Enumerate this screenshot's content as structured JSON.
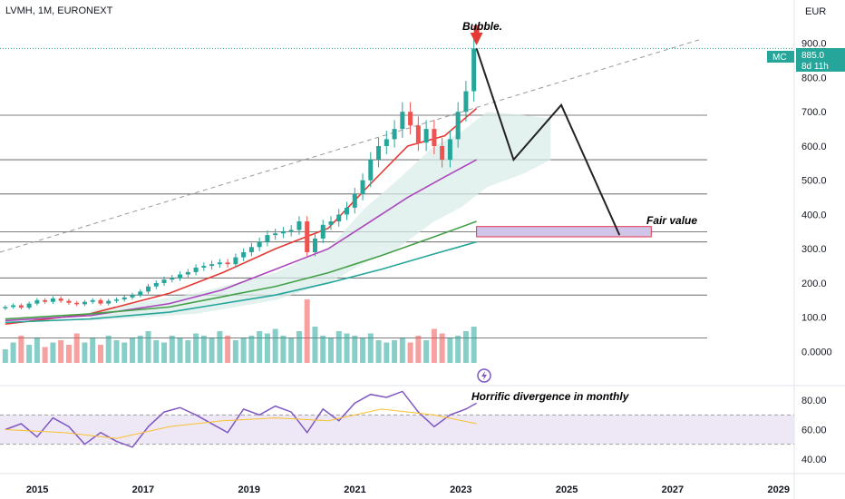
{
  "header": {
    "symbol": "LVMH, 1M, EURONEXT",
    "currency": "EUR"
  },
  "price_badge": {
    "ticker": "MC",
    "price": "885.0",
    "countdown": "8d 11h"
  },
  "annotations": {
    "bubble": "Bubble.",
    "fair_value": "Fair value",
    "divergence": "Horrific divergence in monthly"
  },
  "colors": {
    "up": "#26a69a",
    "down": "#ef5350",
    "ema_red": "#e53935",
    "ema_purple": "#ab47bc",
    "ema_green": "#43a047",
    "ema_teal": "#26a69a",
    "cloud": "#d7ebe8",
    "rsi": "#7e57c2",
    "rsi_band": "#ede7f6",
    "fair_value_box": "#d1c4e9",
    "fair_value_border": "#e53950"
  },
  "chart_data": [
    {
      "type": "line",
      "panel": "price",
      "y_ticks": [
        "900.0",
        "800.0",
        "700.0",
        "600.0",
        "500.0",
        "400.0",
        "300.0",
        "200.0",
        "100.0",
        "0.0000"
      ],
      "y_tick_values": [
        900,
        800,
        700,
        600,
        500,
        400,
        300,
        200,
        100,
        0
      ],
      "ylim": [
        -20,
        1000
      ],
      "x_ticks": [
        "2015",
        "2017",
        "2019",
        "2021",
        "2023",
        "2025",
        "2027",
        "2029"
      ],
      "x_tick_values": [
        2015,
        2017,
        2019,
        2021,
        2023,
        2025,
        2027,
        2029
      ],
      "xlim": [
        2014.3,
        2029.3
      ],
      "candles": {
        "x": [
          2014.4,
          2014.55,
          2014.7,
          2014.85,
          2015.0,
          2015.15,
          2015.3,
          2015.45,
          2015.6,
          2015.75,
          2015.9,
          2016.05,
          2016.2,
          2016.35,
          2016.5,
          2016.65,
          2016.8,
          2016.95,
          2017.1,
          2017.25,
          2017.4,
          2017.55,
          2017.7,
          2017.85,
          2018.0,
          2018.15,
          2018.3,
          2018.45,
          2018.6,
          2018.75,
          2018.9,
          2019.05,
          2019.2,
          2019.35,
          2019.5,
          2019.65,
          2019.8,
          2019.95,
          2020.1,
          2020.25,
          2020.4,
          2020.55,
          2020.7,
          2020.85,
          2021.0,
          2021.15,
          2021.3,
          2021.45,
          2021.6,
          2021.75,
          2021.9,
          2022.05,
          2022.2,
          2022.35,
          2022.5,
          2022.65,
          2022.8,
          2022.95,
          2023.1,
          2023.25
        ],
        "close": [
          130,
          135,
          128,
          140,
          150,
          145,
          155,
          148,
          142,
          138,
          145,
          150,
          140,
          148,
          152,
          158,
          165,
          175,
          190,
          200,
          210,
          215,
          225,
          232,
          245,
          250,
          255,
          260,
          255,
          275,
          290,
          305,
          320,
          340,
          345,
          350,
          355,
          380,
          290,
          330,
          370,
          380,
          400,
          420,
          460,
          500,
          560,
          600,
          620,
          650,
          700,
          660,
          610,
          650,
          600,
          560,
          620,
          700,
          760,
          885
        ]
      },
      "horizontal_levels": [
        690,
        560,
        460,
        350,
        320,
        215,
        165,
        40
      ],
      "dashed_trendline": {
        "from": [
          2014.3,
          290
        ],
        "to": [
          2027.5,
          910
        ]
      },
      "projection": {
        "x": [
          2023.3,
          2024.0,
          2024.9,
          2026.0
        ],
        "y": [
          885,
          560,
          720,
          340
        ]
      },
      "fair_value_zone": {
        "x_range": [
          2023.3,
          2026.6
        ],
        "y_range": [
          335,
          365
        ]
      },
      "emas": [
        {
          "name": "",
          "x": [
            2014.4,
            2016.0,
            2017.5,
            2018.5,
            2019.5,
            2020.5,
            2021.3,
            2022.0,
            2022.7,
            2023.3
          ],
          "y": [
            80,
            110,
            170,
            230,
            300,
            360,
            490,
            600,
            630,
            710
          ]
        },
        {
          "name": "",
          "x": [
            2014.4,
            2016.0,
            2017.5,
            2018.5,
            2019.5,
            2020.5,
            2021.3,
            2022.0,
            2022.7,
            2023.3
          ],
          "y": [
            90,
            105,
            140,
            180,
            240,
            300,
            380,
            450,
            510,
            560
          ]
        },
        {
          "name": "",
          "x": [
            2014.4,
            2016.0,
            2017.5,
            2018.5,
            2019.5,
            2020.5,
            2021.5,
            2022.5,
            2023.3
          ],
          "y": [
            95,
            110,
            130,
            160,
            190,
            230,
            280,
            335,
            380
          ]
        },
        {
          "name": "",
          "x": [
            2014.4,
            2016.0,
            2017.5,
            2018.5,
            2019.5,
            2020.5,
            2021.5,
            2022.5,
            2023.3
          ],
          "y": [
            85,
            95,
            115,
            140,
            165,
            200,
            240,
            285,
            320
          ]
        }
      ],
      "volume": {
        "values": [
          30,
          45,
          60,
          40,
          55,
          35,
          45,
          50,
          40,
          65,
          45,
          55,
          40,
          60,
          50,
          45,
          55,
          60,
          70,
          50,
          45,
          60,
          55,
          50,
          65,
          60,
          55,
          70,
          60,
          50,
          55,
          60,
          70,
          65,
          75,
          60,
          55,
          70,
          140,
          80,
          60,
          55,
          70,
          65,
          60,
          55,
          65,
          50,
          45,
          50,
          55,
          45,
          60,
          50,
          75,
          65,
          55,
          60,
          70,
          80
        ]
      }
    },
    {
      "type": "line",
      "panel": "rsi",
      "y_ticks": [
        "80.00",
        "60.00",
        "40.00"
      ],
      "y_tick_values": [
        80,
        60,
        40
      ],
      "ylim": [
        30,
        90
      ],
      "band": [
        50,
        70
      ],
      "series": [
        {
          "name": "",
          "x": [
            2014.4,
            2014.7,
            2015.0,
            2015.3,
            2015.6,
            2015.9,
            2016.2,
            2016.5,
            2016.8,
            2017.1,
            2017.4,
            2017.7,
            2018.0,
            2018.3,
            2018.6,
            2018.9,
            2019.2,
            2019.5,
            2019.8,
            2020.1,
            2020.4,
            2020.7,
            2021.0,
            2021.3,
            2021.6,
            2021.9,
            2022.2,
            2022.5,
            2022.8,
            2023.1,
            2023.3
          ],
          "values": [
            60,
            64,
            55,
            68,
            62,
            50,
            58,
            52,
            48,
            62,
            72,
            75,
            70,
            64,
            58,
            74,
            70,
            76,
            72,
            58,
            74,
            66,
            78,
            84,
            82,
            86,
            72,
            62,
            70,
            74,
            78
          ]
        },
        {
          "name": "",
          "x": [
            2014.4,
            2015.5,
            2016.5,
            2017.5,
            2018.5,
            2019.5,
            2020.5,
            2021.5,
            2022.5,
            2023.3
          ],
          "values": [
            60,
            58,
            54,
            62,
            66,
            68,
            66,
            74,
            70,
            64
          ]
        }
      ]
    }
  ]
}
